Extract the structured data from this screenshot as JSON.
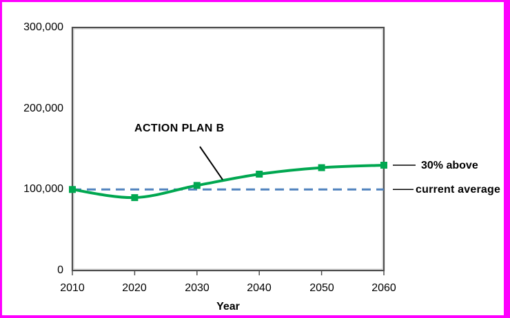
{
  "frame": {
    "border_color": "#FF00FF",
    "background_color": "#FFFFFF"
  },
  "chart_data": {
    "type": "line",
    "title": "",
    "xlabel": "Year",
    "ylabel": "",
    "x": [
      2010,
      2020,
      2030,
      2040,
      2050,
      2060
    ],
    "xtick_labels": [
      "2010",
      "2020",
      "2030",
      "2040",
      "2050",
      "2060"
    ],
    "xlim": [
      2010,
      2060
    ],
    "ylim": [
      0,
      300000
    ],
    "yticks": [
      0,
      100000,
      200000,
      300000
    ],
    "ytick_labels": [
      "0",
      "100,000",
      "200,000",
      "300,000"
    ],
    "grid": false,
    "legend": "none",
    "series": [
      {
        "name": "ACTION PLAN B",
        "values": [
          100000,
          90000,
          105000,
          119000,
          127000,
          130000
        ],
        "color": "#00A750",
        "marker": "square",
        "line_style": "solid",
        "smooth": true
      }
    ],
    "reference_line": {
      "label": "current average",
      "value": 100000,
      "color": "#4F81BD",
      "line_style": "dashed"
    },
    "annotations": {
      "series_label": "ACTION PLAN B",
      "end_label": "30% above",
      "reference_label": "current average"
    },
    "axis_color": "#4D4D4D",
    "axis_highlight_color": "#C8C8C8",
    "leader_line_color": "#000000",
    "text_color": "#000000"
  }
}
